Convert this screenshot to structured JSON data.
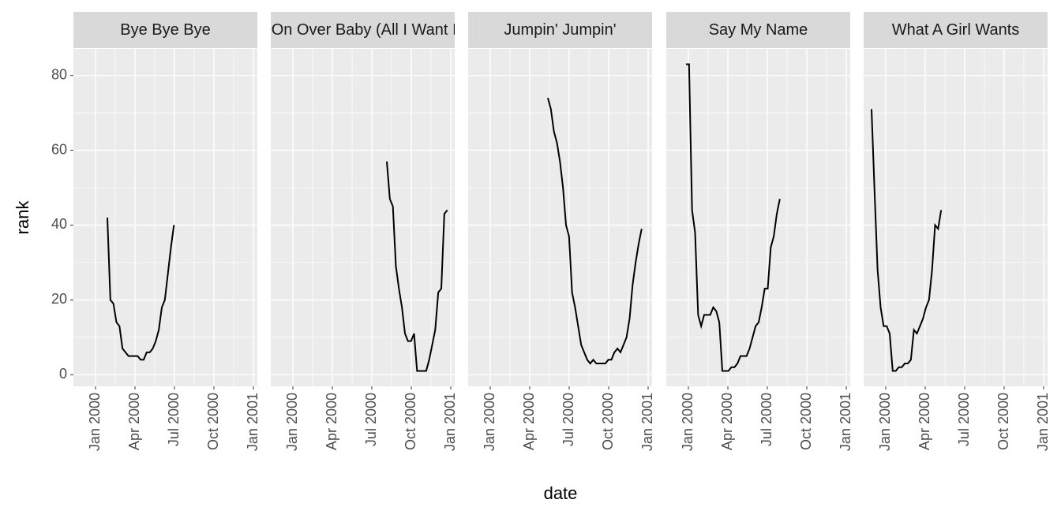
{
  "chart_data": {
    "type": "line",
    "x_label": "date",
    "y_label": "rank",
    "color": "#000000",
    "grid": true,
    "xlim": [
      -1.68,
      12.3
    ],
    "ylim": [
      -3.1,
      87.1
    ],
    "xticks": [
      {
        "value": 0,
        "label": "Jan 2000"
      },
      {
        "value": 3,
        "label": "Apr 2000"
      },
      {
        "value": 6,
        "label": "Jul 2000"
      },
      {
        "value": 9,
        "label": "Oct 2000"
      },
      {
        "value": 12,
        "label": "Jan 2001"
      }
    ],
    "yticks": [
      0,
      20,
      40,
      60,
      80
    ],
    "facets": [
      {
        "title": "Bye Bye Bye",
        "x": [
          0.9,
          1.13,
          1.36,
          1.59,
          1.82,
          2.05,
          2.28,
          2.51,
          2.74,
          2.97,
          3.2,
          3.43,
          3.66,
          3.89,
          4.12,
          4.35,
          4.58,
          4.81,
          5.04,
          5.27,
          5.5,
          5.73,
          5.96
        ],
        "values": [
          42,
          20,
          19,
          14,
          13,
          7,
          6,
          5,
          5,
          5,
          5,
          4,
          4,
          6,
          6,
          7,
          9,
          12,
          18,
          20,
          27,
          34,
          40
        ]
      },
      {
        "title": "Come On Over Baby (All I Want Is You)",
        "x": [
          7.14,
          7.37,
          7.6,
          7.83,
          8.06,
          8.29,
          8.52,
          8.75,
          8.98,
          9.21,
          9.44,
          9.67,
          9.9,
          10.13,
          10.36,
          10.59,
          10.82,
          11.05,
          11.28,
          11.51,
          11.74
        ],
        "values": [
          57,
          47,
          45,
          29,
          23,
          18,
          11,
          9,
          9,
          11,
          1,
          1,
          1,
          1,
          4,
          8,
          12,
          22,
          23,
          43,
          44
        ]
      },
      {
        "title": "Jumpin' Jumpin'",
        "x": [
          4.38,
          4.61,
          4.84,
          5.07,
          5.3,
          5.53,
          5.76,
          5.99,
          6.22,
          6.45,
          6.68,
          6.91,
          7.14,
          7.37,
          7.6,
          7.83,
          8.06,
          8.29,
          8.52,
          8.75,
          8.98,
          9.21,
          9.44,
          9.67,
          9.9,
          10.13,
          10.36,
          10.59,
          10.82,
          11.05,
          11.28,
          11.51
        ],
        "values": [
          74,
          71,
          65,
          62,
          57,
          50,
          40,
          37,
          22,
          18,
          13,
          8,
          6,
          4,
          3,
          4,
          3,
          3,
          3,
          3,
          4,
          4,
          6,
          7,
          6,
          8,
          10,
          15,
          24,
          30,
          35,
          39
        ]
      },
      {
        "title": "Say My Name",
        "x": [
          -0.18,
          0.05,
          0.28,
          0.51,
          0.74,
          0.97,
          1.2,
          1.43,
          1.66,
          1.89,
          2.12,
          2.35,
          2.58,
          2.81,
          3.04,
          3.27,
          3.5,
          3.73,
          3.96,
          4.19,
          4.42,
          4.65,
          4.88,
          5.11,
          5.34,
          5.57,
          5.8,
          6.03,
          6.26,
          6.49,
          6.72,
          6.95
        ],
        "values": [
          83,
          83,
          44,
          38,
          16,
          13,
          16,
          16,
          16,
          18,
          17,
          14,
          1,
          1,
          1,
          2,
          2,
          3,
          5,
          5,
          5,
          7,
          10,
          13,
          14,
          18,
          23,
          23,
          34,
          37,
          43,
          47
        ]
      },
      {
        "title": "What A Girl Wants",
        "x": [
          -1.08,
          -0.85,
          -0.62,
          -0.39,
          -0.16,
          0.07,
          0.3,
          0.53,
          0.76,
          0.99,
          1.22,
          1.45,
          1.68,
          1.91,
          2.14,
          2.37,
          2.6,
          2.83,
          3.06,
          3.29,
          3.52,
          3.75,
          3.98,
          4.21
        ],
        "values": [
          71,
          49,
          28,
          18,
          13,
          13,
          11,
          1,
          1,
          2,
          2,
          3,
          3,
          4,
          12,
          11,
          13,
          15,
          18,
          20,
          28,
          40,
          39,
          44
        ]
      }
    ]
  }
}
